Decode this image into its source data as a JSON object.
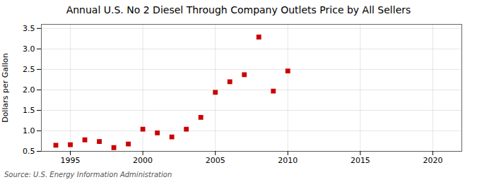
{
  "chart_data": {
    "type": "scatter",
    "title": "Annual U.S. No 2 Diesel Through Company Outlets Price by All Sellers",
    "ylabel": "Dollars per Gallon",
    "annotation": "Source: U.S. Energy Information Administration",
    "x": [
      1994,
      1995,
      1996,
      1997,
      1998,
      1999,
      2000,
      2001,
      2002,
      2003,
      2004,
      2005,
      2006,
      2007,
      2008,
      2009,
      2010
    ],
    "values": [
      0.65,
      0.66,
      0.78,
      0.74,
      0.59,
      0.68,
      1.04,
      0.95,
      0.85,
      1.04,
      1.33,
      1.94,
      2.2,
      2.37,
      3.29,
      1.97,
      2.46
    ],
    "color": "#cc0000",
    "marker": "square",
    "xlim": [
      1993,
      2022
    ],
    "ylim": [
      0.5,
      3.6
    ],
    "xticks": [
      1995,
      2000,
      2005,
      2010,
      2015,
      2020
    ],
    "yticks": [
      0.5,
      {
        "value": 1.0,
        "label": "1.0"
      },
      1.5,
      {
        "value": 2.0,
        "label": "2.0"
      },
      2.5,
      {
        "value": 3.0,
        "label": "3.0"
      },
      3.5
    ],
    "grid": true
  }
}
